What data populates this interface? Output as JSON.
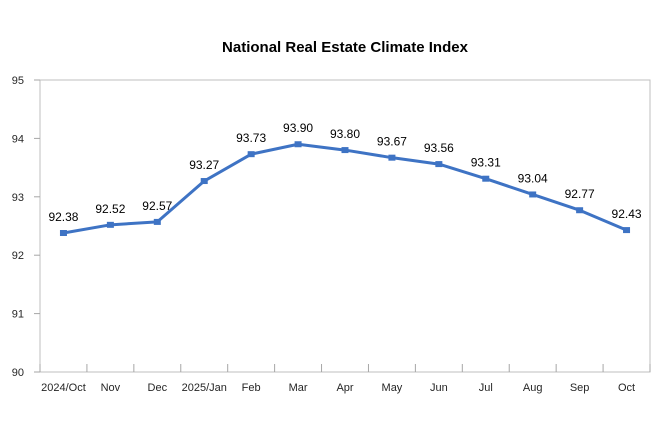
{
  "chart_data": {
    "type": "line",
    "title": "National Real Estate Climate Index",
    "categories": [
      "2024/Oct",
      "Nov",
      "Dec",
      "2025/Jan",
      "Feb",
      "Mar",
      "Apr",
      "May",
      "Jun",
      "Jul",
      "Aug",
      "Sep",
      "Oct"
    ],
    "series": [
      {
        "name": "National Real Estate Climate Index",
        "values": [
          92.38,
          92.52,
          92.57,
          93.27,
          93.73,
          93.9,
          93.8,
          93.67,
          93.56,
          93.31,
          93.04,
          92.77,
          92.43
        ]
      }
    ],
    "data_labels": [
      "92.38",
      "92.52",
      "92.57",
      "93.27",
      "93.73",
      "93.90",
      "93.80",
      "93.67",
      "93.56",
      "93.31",
      "93.04",
      "92.77",
      "92.43"
    ],
    "ylim": [
      90,
      95
    ],
    "ytick_step": 1,
    "ytick_labels": [
      "90",
      "91",
      "92",
      "93",
      "94",
      "95"
    ],
    "grid": false,
    "legend_position": "none",
    "data_label_position": "above",
    "colors": {
      "line": "#3E73C4",
      "marker": "#3E73C4",
      "plot_border": "#BFBFBF",
      "tick": "#A6A6A6",
      "data_label_text": "#000000",
      "axis_label_text": "#262626",
      "title_text": "#000000",
      "background": "#FFFFFF"
    }
  }
}
